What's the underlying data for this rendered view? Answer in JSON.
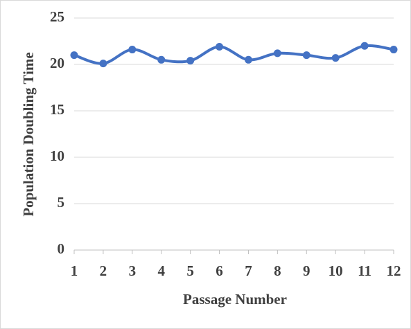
{
  "chart_data": {
    "type": "line",
    "x_label": "Passage Number",
    "y_label": "Population Doubling Time",
    "x": [
      1,
      2,
      3,
      4,
      5,
      6,
      7,
      8,
      9,
      10,
      11,
      12
    ],
    "series": [
      {
        "color": "#4472c4",
        "values": [
          21.0,
          20.1,
          21.6,
          20.5,
          20.4,
          21.9,
          20.5,
          21.2,
          21.0,
          20.7,
          22.0,
          21.6
        ]
      }
    ],
    "xlim": [
      1,
      12
    ],
    "xticks": [
      1,
      2,
      3,
      4,
      5,
      6,
      7,
      8,
      9,
      10,
      11,
      12
    ],
    "ylim": [
      0,
      25
    ],
    "yticks": [
      0,
      5,
      10,
      15,
      20,
      25
    ],
    "grid": true,
    "smooth": true
  }
}
